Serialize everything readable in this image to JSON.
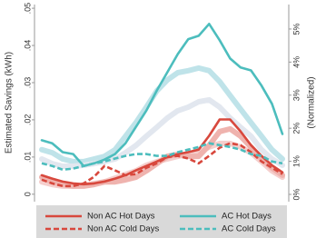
{
  "chart_data": {
    "type": "line",
    "ylabel": "Estimated Savings (kWh)",
    "y2label": "(Normalized)",
    "categories": [
      null,
      null,
      null,
      null,
      null,
      null,
      null,
      null,
      null,
      null,
      null,
      null,
      null,
      null,
      null,
      null,
      null,
      null,
      null,
      null,
      null,
      null,
      null,
      null
    ],
    "ylim": [
      -0.002,
      0.051
    ],
    "yticks": [
      0,
      {
        "value": 0.01,
        "label": ".01"
      },
      {
        "value": 0.02,
        "label": ".02"
      },
      {
        "value": 0.03,
        "label": ".03"
      },
      {
        "value": 0.04,
        "label": ".04"
      },
      {
        "value": 0.05,
        "label": ".05"
      }
    ],
    "y2lim": [
      -0.22,
      5.74
    ],
    "y2ticks": [
      {
        "value": 0,
        "label": "0%"
      },
      {
        "value": 1,
        "label": "1%"
      },
      {
        "value": 2,
        "label": "2%"
      },
      {
        "value": 3,
        "label": "3%"
      },
      {
        "value": 4,
        "label": "4%"
      },
      {
        "value": 5,
        "label": "5%"
      }
    ],
    "series": [
      {
        "color": "#bfe3e9",
        "axis": "y2",
        "width": 6,
        "values": [
          1.35,
          1.26,
          1.07,
          0.99,
          0.99,
          1.07,
          1.15,
          1.35,
          1.76,
          2.17,
          2.64,
          3.13,
          3.46,
          3.68,
          3.74,
          3.82,
          3.74,
          3.41,
          2.99,
          2.58,
          2.17,
          1.76,
          1.35,
          1.07
        ]
      },
      {
        "color": "#e2e7ef",
        "axis": "y2",
        "width": 6,
        "values": [
          1.07,
          0.93,
          0.85,
          0.85,
          0.88,
          0.93,
          0.99,
          1.07,
          1.26,
          1.48,
          1.76,
          2.03,
          2.31,
          2.53,
          2.64,
          2.8,
          2.86,
          2.64,
          2.31,
          2.03,
          1.76,
          1.35,
          1.07,
          0.88
        ]
      },
      {
        "color": "#f5cfcd",
        "axis": "y2",
        "width": 6,
        "values": [
          0.38,
          0.3,
          0.25,
          0.25,
          0.27,
          0.33,
          0.38,
          0.49,
          0.6,
          0.71,
          0.88,
          0.99,
          1.07,
          1.15,
          1.21,
          1.26,
          1.43,
          1.54,
          1.54,
          1.43,
          1.26,
          0.99,
          0.71,
          0.52
        ]
      },
      {
        "color": "#efb3ae",
        "axis": "y2",
        "width": 6,
        "values": [
          0.52,
          0.38,
          0.3,
          0.25,
          0.25,
          0.3,
          0.38,
          0.38,
          0.44,
          0.52,
          0.71,
          0.93,
          1.15,
          1.21,
          1.15,
          1.15,
          1.48,
          1.9,
          1.98,
          1.76,
          1.43,
          1.07,
          0.8,
          0.58
        ]
      },
      {
        "name": "Non AC Hot Days",
        "color": "#d8483d",
        "width": 2.6,
        "dashed": false,
        "values": [
          0.0051,
          0.0042,
          0.0034,
          0.0029,
          0.0027,
          0.0029,
          0.0034,
          0.0042,
          0.0051,
          0.0064,
          0.0076,
          0.0088,
          0.01,
          0.0108,
          0.0113,
          0.012,
          0.0157,
          0.0201,
          0.0201,
          0.0169,
          0.0132,
          0.0103,
          0.0078,
          0.0059
        ]
      },
      {
        "name": "Non AC Cold Days",
        "color": "#d8483d",
        "width": 2.6,
        "dashed": true,
        "values": [
          0.0039,
          0.0029,
          0.0022,
          0.0022,
          0.0029,
          0.0047,
          0.0076,
          0.0064,
          0.0051,
          0.0054,
          0.0071,
          0.0083,
          0.01,
          0.0103,
          0.0096,
          0.0083,
          0.0103,
          0.0125,
          0.0137,
          0.0132,
          0.0113,
          0.0088,
          0.0071,
          0.0054
        ]
      },
      {
        "name": "AC Hot Days",
        "color": "#4cbdbd",
        "width": 2.6,
        "dashed": false,
        "values": [
          0.0145,
          0.0137,
          0.0113,
          0.0108,
          0.0076,
          0.0083,
          0.0093,
          0.0108,
          0.0137,
          0.0181,
          0.0225,
          0.0279,
          0.0328,
          0.0377,
          0.0417,
          0.0426,
          0.0458,
          0.0414,
          0.0365,
          0.0341,
          0.0333,
          0.0292,
          0.0243,
          0.0162
        ]
      },
      {
        "name": "AC Cold Days",
        "color": "#4cbdbd",
        "width": 2.6,
        "dashed": true,
        "values": [
          0.0083,
          0.0076,
          0.0066,
          0.0069,
          0.0076,
          0.0083,
          0.0088,
          0.0096,
          0.0103,
          0.0108,
          0.0108,
          0.0103,
          0.0103,
          0.0113,
          0.012,
          0.0127,
          0.0137,
          0.0132,
          0.0127,
          0.012,
          0.0108,
          0.0103,
          0.0088,
          0.0083
        ]
      }
    ]
  }
}
